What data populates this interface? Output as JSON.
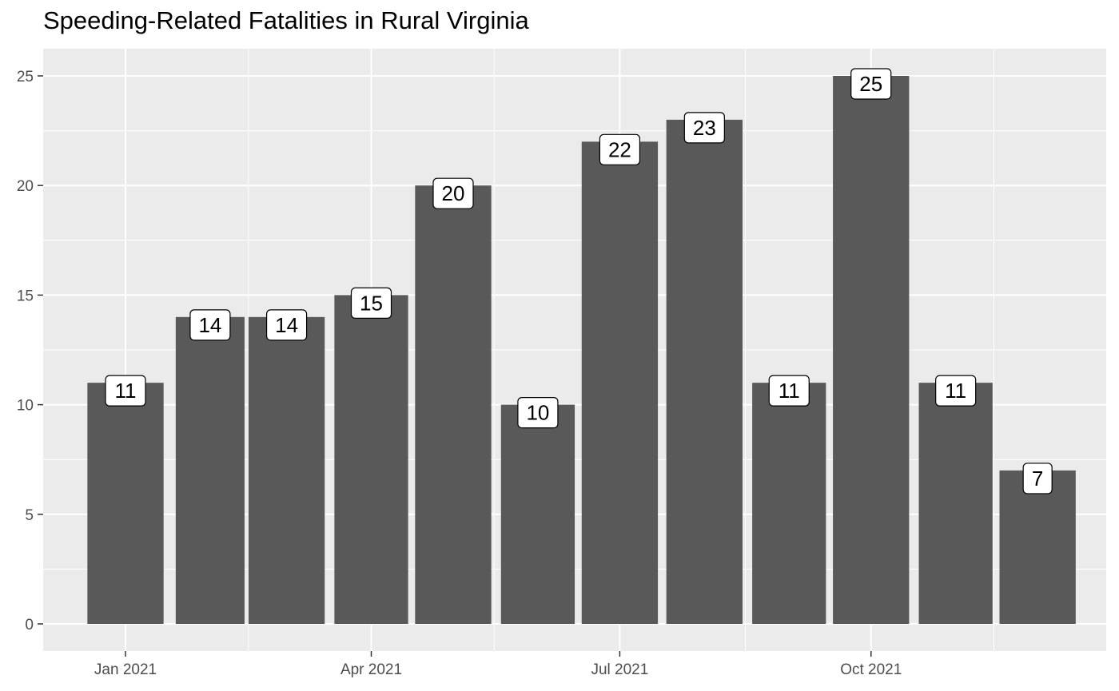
{
  "chart_data": {
    "type": "bar",
    "title": "Speeding-Related Fatalities in Rural Virginia",
    "xlabel": "",
    "ylabel": "",
    "x_dates": [
      "2021-01-01",
      "2021-02-01",
      "2021-03-01",
      "2021-04-01",
      "2021-05-01",
      "2021-06-01",
      "2021-07-01",
      "2021-08-01",
      "2021-09-01",
      "2021-10-01",
      "2021-11-01",
      "2021-12-01"
    ],
    "values": [
      11,
      14,
      14,
      15,
      20,
      10,
      22,
      23,
      11,
      25,
      11,
      7
    ],
    "ylim": [
      0,
      25
    ],
    "y_ticks": [
      0,
      5,
      10,
      15,
      20,
      25
    ],
    "x_ticks": [
      {
        "date": "2021-01-01",
        "label": "Jan 2021"
      },
      {
        "date": "2021-04-01",
        "label": "Apr 2021"
      },
      {
        "date": "2021-07-01",
        "label": "Jul 2021"
      },
      {
        "date": "2021-10-01",
        "label": "Oct 2021"
      }
    ],
    "x_minor_breaks": [
      "2021-02-15",
      "2021-05-16",
      "2021-08-16",
      "2021-11-15"
    ],
    "grid": true,
    "legend": "none",
    "colors": {
      "bar": "#595959",
      "panel_background": "#ebebeb",
      "grid": "#ffffff",
      "label_fill": "#ffffff",
      "label_border": "#000000"
    }
  }
}
